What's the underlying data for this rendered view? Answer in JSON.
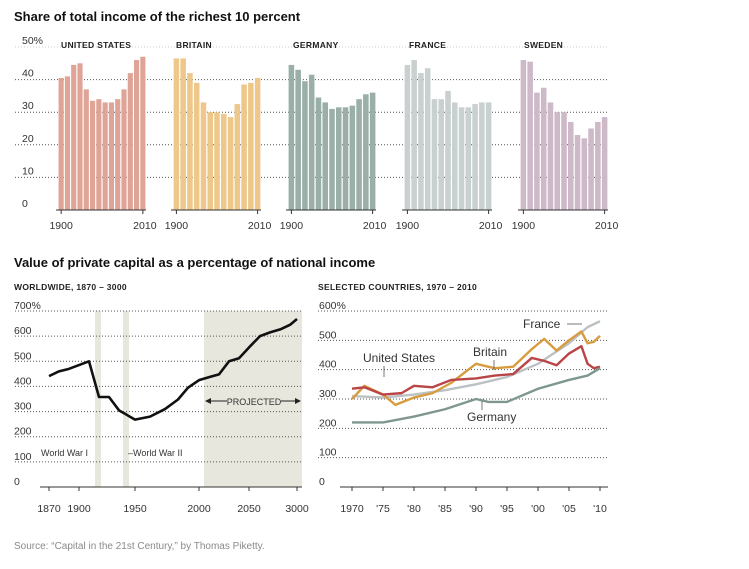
{
  "title_share": "Share of total income of the richest 10 percent",
  "title_capital": "Value of private capital as a percentage of national income",
  "subtitle_worldwide": "WORLDWIDE, 1870 – 3000",
  "subtitle_selected": "SELECTED COUNTRIES, 1970 – 2010",
  "source": "Source: “Capital in the 21st Century,” by Thomas Piketty.",
  "chart_data": [
    {
      "type": "bar",
      "title": "Share of total income of the richest 10 percent",
      "y_tick_labels": [
        "0",
        "10",
        "20",
        "30",
        "40",
        "50%"
      ],
      "ylim": [
        0,
        50
      ],
      "x_tick_labels": [
        "1900",
        "2010"
      ],
      "grid": true,
      "panels": [
        {
          "name": "UNITED STATES",
          "color": "#e0a497",
          "values": [
            40.5,
            41,
            44.5,
            45,
            37,
            33.5,
            34,
            33,
            33,
            34,
            37,
            42,
            46,
            47
          ]
        },
        {
          "name": "BRITAIN",
          "color": "#eec88b",
          "values": [
            46.5,
            46.5,
            42,
            39,
            33,
            30,
            30,
            29.5,
            28.5,
            32.5,
            38.5,
            39,
            40.5
          ]
        },
        {
          "name": "GERMANY",
          "color": "#9aafa7",
          "values": [
            44.5,
            43,
            39.5,
            41.5,
            34.5,
            33,
            31,
            31.5,
            31.5,
            32,
            34,
            35.5,
            36
          ]
        },
        {
          "name": "FRANCE",
          "color": "#c8d0d0",
          "values": [
            44.5,
            46,
            42,
            43.5,
            34,
            34,
            36.5,
            33,
            31.5,
            31.5,
            32.5,
            33,
            33
          ]
        },
        {
          "name": "SWEDEN",
          "color": "#cdb9c8",
          "values": [
            46,
            45.5,
            36,
            37.5,
            33,
            30,
            30,
            27,
            23,
            22,
            25,
            27,
            28.5
          ]
        }
      ]
    },
    {
      "type": "line",
      "subtitle": "WORLDWIDE, 1870 – 3000",
      "y_tick_labels": [
        "0",
        "100",
        "200",
        "300",
        "400",
        "500",
        "600",
        "700%"
      ],
      "ylim": [
        0,
        700
      ],
      "x_tick_labels": [
        "1870",
        "1900",
        "1950",
        "2000",
        "2050",
        "3000"
      ],
      "x_categories": [
        "1870",
        "1880",
        "1890",
        "1900",
        "1910",
        "1920",
        "1930",
        "1940",
        "1950",
        "1960",
        "1970",
        "1980",
        "1990",
        "2000",
        "2010",
        "2020",
        "2030",
        "2040",
        "2050",
        "2060",
        "2070",
        "2080",
        "2090",
        "3000"
      ],
      "series": [
        {
          "values": [
            441,
            460,
            470,
            485,
            500,
            358,
            358,
            305,
            268,
            280,
            310,
            348,
            395,
            425,
            438,
            448,
            500,
            512,
            555,
            600,
            615,
            628,
            645,
            668
          ]
        }
      ],
      "annotations": [
        "World War I",
        "World War II",
        "PROJECTED"
      ],
      "grid": true
    },
    {
      "type": "line",
      "subtitle": "SELECTED COUNTRIES, 1970 – 2010",
      "y_tick_labels": [
        "0",
        "100",
        "200",
        "300",
        "400",
        "500",
        "600%"
      ],
      "ylim": [
        0,
        600
      ],
      "x_tick_labels": [
        "1970",
        "'75",
        "'80",
        "'85",
        "'90",
        "'95",
        "'00",
        "'05",
        "'10"
      ],
      "grid": true,
      "series": [
        {
          "name": "France",
          "color": "#bcc1c4",
          "x": [
            1970,
            1975,
            1980,
            1985,
            1990,
            1995,
            2000,
            2005,
            2008,
            2010
          ],
          "values": [
            310,
            305,
            315,
            330,
            350,
            375,
            420,
            490,
            545,
            565
          ]
        },
        {
          "name": "Britain",
          "color": "#d89b3e",
          "x": [
            1970,
            1972,
            1975,
            1977,
            1980,
            1983,
            1986,
            1990,
            1993,
            1996,
            1999,
            2001,
            2003,
            2005,
            2007,
            2008,
            2009,
            2010
          ],
          "values": [
            300,
            345,
            315,
            280,
            305,
            320,
            355,
            420,
            405,
            410,
            470,
            505,
            465,
            500,
            530,
            490,
            495,
            515
          ]
        },
        {
          "name": "United States",
          "color": "#b94547",
          "x": [
            1970,
            1972,
            1975,
            1978,
            1980,
            1983,
            1986,
            1990,
            1993,
            1996,
            1999,
            2001,
            2003,
            2005,
            2007,
            2008,
            2009,
            2010
          ],
          "values": [
            335,
            340,
            315,
            320,
            345,
            340,
            365,
            370,
            380,
            385,
            440,
            430,
            415,
            455,
            480,
            420,
            405,
            410
          ]
        },
        {
          "name": "Germany",
          "color": "#7f9791",
          "x": [
            1970,
            1975,
            1980,
            1985,
            1990,
            1992,
            1995,
            2000,
            2005,
            2008,
            2010
          ],
          "values": [
            220,
            220,
            240,
            265,
            300,
            290,
            290,
            335,
            365,
            380,
            405
          ]
        }
      ]
    }
  ]
}
